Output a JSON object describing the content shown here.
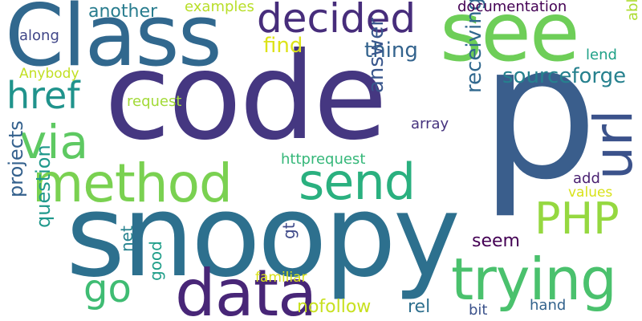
{
  "words": [
    {
      "text": "code",
      "color": "#453781"
    },
    {
      "text": "p",
      "color": "#3a5e8c"
    },
    {
      "text": "snoopy",
      "color": "#2d708e"
    },
    {
      "text": "Class",
      "color": "#31688e"
    },
    {
      "text": "see",
      "color": "#6ece58"
    },
    {
      "text": "trying",
      "color": "#4ac16d"
    },
    {
      "text": "data",
      "color": "#482677"
    },
    {
      "text": "method",
      "color": "#7ad151"
    },
    {
      "text": "send",
      "color": "#2ab07f"
    },
    {
      "text": "decided",
      "color": "#472d7b"
    },
    {
      "text": "via",
      "color": "#5ec962"
    },
    {
      "text": "url",
      "color": "#3b528b"
    },
    {
      "text": "PHP",
      "color": "#95d840"
    },
    {
      "text": "href",
      "color": "#20938c"
    },
    {
      "text": "go",
      "color": "#3fbc73"
    },
    {
      "text": "sourceforge",
      "color": "#26818e"
    },
    {
      "text": "thing",
      "color": "#33638d"
    },
    {
      "text": "find",
      "color": "#dde318"
    },
    {
      "text": "answer",
      "color": "#39568c"
    },
    {
      "text": "receiving",
      "color": "#31688e"
    },
    {
      "text": "projects",
      "color": "#34618d"
    },
    {
      "text": "question",
      "color": "#1f988b"
    },
    {
      "text": "another",
      "color": "#287c8e"
    },
    {
      "text": "documentation",
      "color": "#440154"
    },
    {
      "text": "examples",
      "color": "#b8de29"
    },
    {
      "text": "along",
      "color": "#404688"
    },
    {
      "text": "Anybody",
      "color": "#c2df23"
    },
    {
      "text": "request",
      "color": "#a2da37"
    },
    {
      "text": "httprequest",
      "color": "#35b779"
    },
    {
      "text": "array",
      "color": "#46337e"
    },
    {
      "text": "lend",
      "color": "#1fa187"
    },
    {
      "text": "able",
      "color": "#addc30"
    },
    {
      "text": "add",
      "color": "#481f70"
    },
    {
      "text": "values",
      "color": "#d8e219"
    },
    {
      "text": "seem",
      "color": "#440154"
    },
    {
      "text": "gt",
      "color": "#3e4989"
    },
    {
      "text": "net",
      "color": "#26828e"
    },
    {
      "text": "good",
      "color": "#1f9e89"
    },
    {
      "text": "familiar",
      "color": "#d8e219"
    },
    {
      "text": "nofollow",
      "color": "#c8e020"
    },
    {
      "text": "rel",
      "color": "#2e6f8e"
    },
    {
      "text": "bit",
      "color": "#3b528b"
    },
    {
      "text": "hand",
      "color": "#33638d"
    }
  ]
}
